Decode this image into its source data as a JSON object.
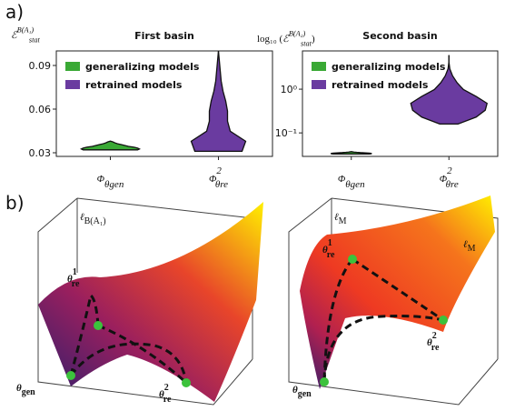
{
  "panel_labels": {
    "a": "a)",
    "b": "b)"
  },
  "chart_data": [
    {
      "type": "violin",
      "title": "First basin",
      "y_label": {
        "main": "ℰ",
        "sub": "stat",
        "sup": "B(A₁)"
      },
      "categories": [
        {
          "main": "Φ",
          "sub": "θgen"
        },
        {
          "main": "Φ",
          "sup": "2",
          "sub": "θre"
        }
      ],
      "series": [
        {
          "name": "generalizing models",
          "color": "#3aa935",
          "min": 0.032,
          "max": 0.038
        },
        {
          "name": "retrained models",
          "color": "#6a3ba0",
          "min": 0.031,
          "max": 0.1
        }
      ],
      "ylim": [
        0.0275,
        0.1
      ],
      "yticks": [
        0.03,
        0.06,
        0.09
      ],
      "log": false,
      "legend": "upper left"
    },
    {
      "type": "violin",
      "title": "Second basin",
      "y_label": {
        "prefix": "log₁₀ (",
        "main": "ℰ",
        "sub": "stat",
        "sup": "B(A₂)",
        "suffix": ")"
      },
      "categories": [
        {
          "main": "Φ",
          "sub": "θgen"
        },
        {
          "main": "Φ",
          "sup": "2",
          "sub": "θre"
        }
      ],
      "series": [
        {
          "name": "generalizing models",
          "color": "#3aa935",
          "min": 0.033,
          "max": 0.038
        },
        {
          "name": "retrained models",
          "color": "#6a3ba0",
          "min": 0.16,
          "max": 6
        }
      ],
      "ylim": [
        0.029,
        7.5
      ],
      "yticks": [
        {
          "value": 1,
          "label": "10⁰"
        },
        {
          "value": 0.1,
          "label": "10⁻¹"
        }
      ],
      "log": true,
      "legend": "upper left"
    }
  ],
  "panel_b": {
    "left": {
      "surface": {
        "main": "ℓ",
        "sub": "B(A₁)"
      },
      "gen": {
        "main": "θ",
        "sub": "gen"
      },
      "re1": {
        "main": "θ",
        "sup": "1",
        "sub": "re"
      },
      "re2": {
        "main": "θ",
        "sup": "2",
        "sub": "re"
      }
    },
    "right": {
      "axis": {
        "main": "ℓ",
        "sub": "M"
      },
      "surface": {
        "main": "ℓ",
        "sub": "M"
      },
      "gen": {
        "main": "θ",
        "sub": "gen"
      },
      "re1": {
        "main": "θ",
        "sup": "1",
        "sub": "re"
      },
      "re2": {
        "main": "θ",
        "sup": "2",
        "sub": "re"
      }
    }
  }
}
